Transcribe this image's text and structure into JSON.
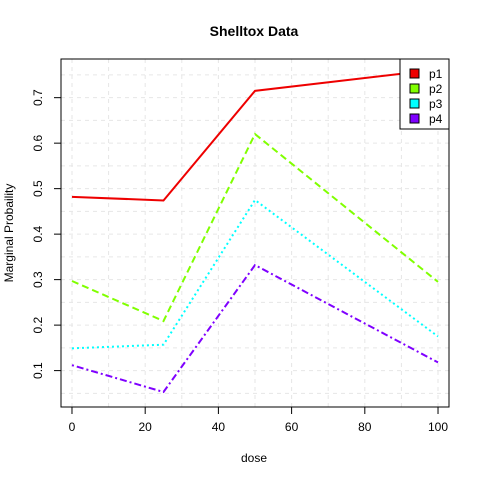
{
  "chart_data": {
    "type": "line",
    "title": "Shelltox Data",
    "xlabel": "dose",
    "ylabel": "Marginal Probaility",
    "xlim": [
      -3,
      103
    ],
    "ylim": [
      0.02,
      0.785
    ],
    "x_ticks": [
      0,
      20,
      40,
      60,
      80,
      100
    ],
    "y_ticks": [
      0.1,
      0.2,
      0.3,
      0.4,
      0.5,
      0.6,
      0.7
    ],
    "x_grid": [
      0,
      10,
      20,
      30,
      40,
      50,
      60,
      70,
      80,
      90,
      100
    ],
    "y_grid": [
      0.05,
      0.1,
      0.15,
      0.2,
      0.25,
      0.3,
      0.35,
      0.4,
      0.45,
      0.5,
      0.55,
      0.6,
      0.65,
      0.7,
      0.75
    ],
    "grid": true,
    "legend_position": "top-right",
    "x": [
      0,
      25,
      50,
      100
    ],
    "series": [
      {
        "name": "p1",
        "values": [
          0.482,
          0.474,
          0.715,
          0.762
        ],
        "color": "#ee0000",
        "dash": "solid"
      },
      {
        "name": "p2",
        "values": [
          0.297,
          0.209,
          0.62,
          0.295
        ],
        "color": "#80ff00",
        "dash": "dashed"
      },
      {
        "name": "p3",
        "values": [
          0.149,
          0.157,
          0.475,
          0.175
        ],
        "color": "#00ffff",
        "dash": "dotted"
      },
      {
        "name": "p4",
        "values": [
          0.112,
          0.053,
          0.332,
          0.118
        ],
        "color": "#7f00ff",
        "dash": "dotdash"
      }
    ]
  }
}
